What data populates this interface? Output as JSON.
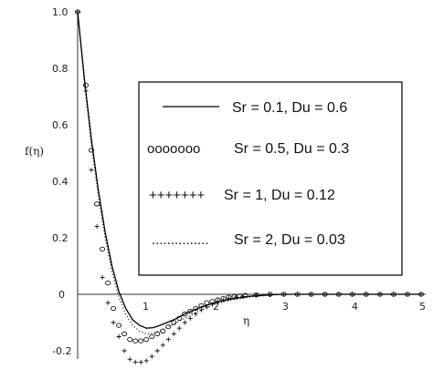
{
  "chart_data": {
    "type": "line",
    "xlabel": "η",
    "ylabel": "f(η)",
    "xlim": [
      0,
      5
    ],
    "ylim": [
      -0.25,
      1.0
    ],
    "x_ticks": [
      "1",
      "2",
      "3",
      "4",
      "5"
    ],
    "y_ticks": [
      "1.0",
      "0.8",
      "0.6",
      "0.4",
      "0.2",
      "0",
      "-0.2"
    ],
    "legend": {
      "placement": "right",
      "entries": [
        {
          "marker": "",
          "label": "Sr = 0.1, Du = 0.6"
        },
        {
          "marker": "ooooooo",
          "label": "Sr = 0.5, Du = 0.3"
        },
        {
          "marker": "+++++++",
          "label": "Sr = 1, Du = 0.12"
        },
        {
          "marker": "...............",
          "label": "Sr = 2, Du = 0.03"
        }
      ]
    },
    "series": [
      {
        "style": "solid",
        "x": [
          0,
          0.1,
          0.2,
          0.3,
          0.4,
          0.5,
          0.6,
          0.7,
          0.8,
          0.9,
          1.0,
          1.1,
          1.2,
          1.3,
          1.4,
          1.6,
          1.8,
          2.0,
          2.2,
          2.5,
          2.8,
          3.0,
          3.5,
          4.0,
          4.5,
          5.0
        ],
        "y": [
          1.0,
          0.76,
          0.55,
          0.37,
          0.22,
          0.1,
          0.01,
          -0.05,
          -0.09,
          -0.11,
          -0.12,
          -0.118,
          -0.11,
          -0.1,
          -0.09,
          -0.065,
          -0.045,
          -0.03,
          -0.018,
          -0.007,
          -0.002,
          0,
          0,
          0,
          0,
          0
        ]
      },
      {
        "style": "circle",
        "x": [
          0,
          0.12,
          0.2,
          0.28,
          0.36,
          0.44,
          0.52,
          0.6,
          0.68,
          0.76,
          0.84,
          0.92,
          1.0,
          1.08,
          1.16,
          1.24,
          1.32,
          1.4,
          1.48,
          1.56,
          1.64,
          1.72,
          1.8,
          1.88,
          1.96,
          2.04,
          2.12,
          2.2,
          2.28,
          2.36,
          2.44,
          2.6,
          2.8,
          3.0,
          3.2,
          3.4,
          3.6,
          3.8,
          4.0,
          4.2,
          4.4,
          4.6,
          4.8,
          5.0
        ],
        "y": [
          1.0,
          0.74,
          0.51,
          0.32,
          0.16,
          0.04,
          -0.05,
          -0.11,
          -0.14,
          -0.16,
          -0.165,
          -0.165,
          -0.16,
          -0.15,
          -0.14,
          -0.13,
          -0.115,
          -0.1,
          -0.085,
          -0.07,
          -0.06,
          -0.05,
          -0.04,
          -0.03,
          -0.025,
          -0.02,
          -0.015,
          -0.01,
          -0.008,
          -0.006,
          -0.004,
          -0.002,
          0,
          0,
          0,
          0,
          0,
          0,
          0,
          0,
          0,
          0,
          0,
          0
        ]
      },
      {
        "style": "plus",
        "x": [
          0,
          0.12,
          0.2,
          0.28,
          0.36,
          0.44,
          0.52,
          0.6,
          0.68,
          0.76,
          0.84,
          0.92,
          1.0,
          1.08,
          1.16,
          1.24,
          1.32,
          1.4,
          1.48,
          1.56,
          1.64,
          1.72,
          1.8,
          1.88,
          1.96,
          2.04,
          2.12,
          2.2,
          2.3,
          2.4,
          2.6,
          2.8,
          3.0,
          3.2,
          3.4,
          3.6,
          3.8,
          4.0,
          4.2,
          4.4,
          4.6,
          4.8,
          5.0
        ],
        "y": [
          1.0,
          0.72,
          0.44,
          0.24,
          0.06,
          -0.03,
          -0.1,
          -0.15,
          -0.2,
          -0.23,
          -0.24,
          -0.24,
          -0.235,
          -0.22,
          -0.2,
          -0.18,
          -0.16,
          -0.14,
          -0.12,
          -0.1,
          -0.085,
          -0.07,
          -0.055,
          -0.045,
          -0.035,
          -0.025,
          -0.02,
          -0.015,
          -0.01,
          -0.007,
          -0.004,
          -0.002,
          0,
          0,
          0,
          0,
          0,
          0,
          0,
          0,
          0,
          0,
          0
        ]
      },
      {
        "style": "dotted",
        "x": [
          0,
          0.1,
          0.2,
          0.3,
          0.4,
          0.5,
          0.6,
          0.7,
          0.8,
          0.9,
          1.0,
          1.1,
          1.2,
          1.3,
          1.4,
          1.6,
          1.8,
          2.0,
          2.2,
          2.5,
          2.8,
          3.0,
          3.5,
          4.0,
          4.5,
          5.0
        ],
        "y": [
          1.0,
          0.745,
          0.53,
          0.35,
          0.2,
          0.08,
          -0.01,
          -0.07,
          -0.11,
          -0.13,
          -0.14,
          -0.138,
          -0.13,
          -0.118,
          -0.105,
          -0.08,
          -0.055,
          -0.035,
          -0.022,
          -0.01,
          -0.003,
          0,
          0,
          0,
          0,
          0
        ]
      }
    ]
  }
}
